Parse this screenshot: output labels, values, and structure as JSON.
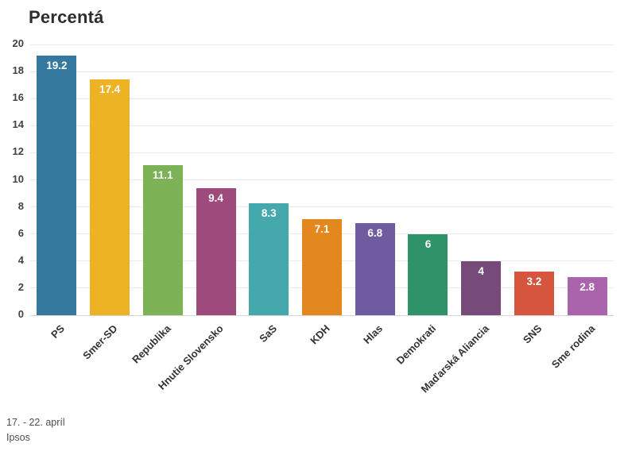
{
  "title": "Percentá",
  "source": {
    "period": "17. - 22. apríl",
    "agency": "Ipsos"
  },
  "chart_data": {
    "type": "bar",
    "title": "Percentá",
    "categories": [
      "PS",
      "Smer-SD",
      "Republika",
      "Hnutie Slovensko",
      "SaS",
      "KDH",
      "Hlas",
      "Demokrati",
      "Maďarská Aliancia",
      "SNS",
      "Sme rodina"
    ],
    "values": [
      19.2,
      17.4,
      11.1,
      9.4,
      8.3,
      7.1,
      6.8,
      6,
      4,
      3.2,
      2.8
    ],
    "value_labels": [
      "19.2",
      "17.4",
      "11.1",
      "9.4",
      "8.3",
      "7.1",
      "6.8",
      "6",
      "4",
      "3.2",
      "2.8"
    ],
    "colors": [
      "#35799e",
      "#eeb324",
      "#7db356",
      "#9e4a7c",
      "#45a8ac",
      "#e2881f",
      "#6e5ba0",
      "#2e9368",
      "#764b79",
      "#d5553f",
      "#aa64ac"
    ],
    "xlabel": "",
    "ylabel": "",
    "ylim": [
      0,
      20
    ],
    "ytick_step": 2,
    "grid": true,
    "legend": false,
    "x_tick_rotation_deg": 45,
    "annotations": [
      "17. - 22. apríl",
      "Ipsos"
    ]
  }
}
